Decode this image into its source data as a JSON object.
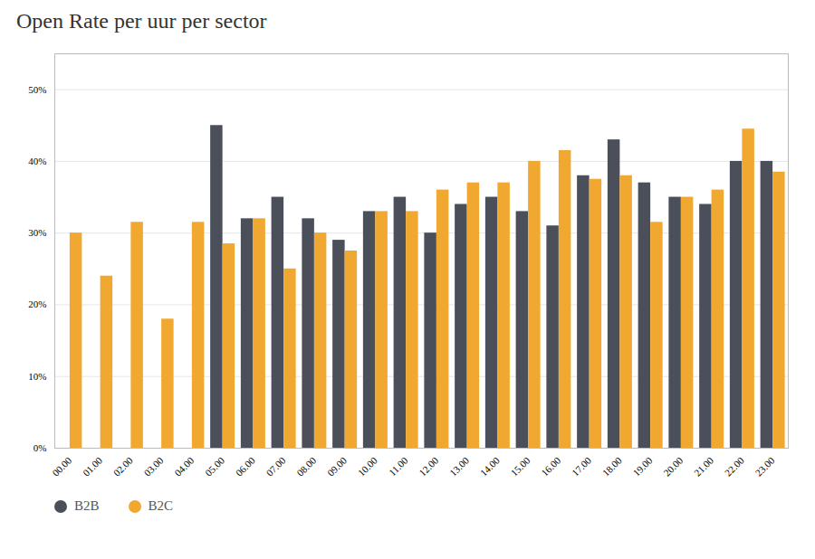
{
  "chart_data": {
    "type": "bar",
    "title": "Open Rate per uur per sector",
    "categories": [
      "00.00",
      "01.00",
      "02.00",
      "03.00",
      "04.00",
      "05.00",
      "06.00",
      "07.00",
      "08.00",
      "09.00",
      "10.00",
      "11.00",
      "12.00",
      "13.00",
      "14.00",
      "15.00",
      "16.00",
      "17.00",
      "18.00",
      "19.00",
      "20.00",
      "21.00",
      "22.00",
      "23.00"
    ],
    "series": [
      {
        "name": "B2B",
        "color": "#4a4f5a",
        "values": [
          0,
          0,
          0,
          0,
          0,
          45,
          32,
          35,
          32,
          29,
          33,
          35,
          30,
          34,
          35,
          33,
          31,
          38,
          43,
          37,
          35,
          34,
          40,
          40
        ]
      },
      {
        "name": "B2C",
        "color": "#f0a830",
        "values": [
          30,
          24,
          31.5,
          18,
          31.5,
          28.5,
          32,
          25,
          30,
          27.5,
          33,
          33,
          36,
          37,
          37,
          40,
          41.5,
          37.5,
          38,
          31.5,
          35,
          36,
          44.5,
          38.5
        ]
      }
    ],
    "ylim": [
      0,
      55
    ],
    "yticks": [
      {
        "value": 0,
        "label": "0%"
      },
      {
        "value": 10,
        "label": "10%"
      },
      {
        "value": 20,
        "label": "20%"
      },
      {
        "value": 30,
        "label": "30%"
      },
      {
        "value": 40,
        "label": "40%"
      },
      {
        "value": 50,
        "label": "50%"
      }
    ],
    "grid": true,
    "legend": "lower left"
  }
}
